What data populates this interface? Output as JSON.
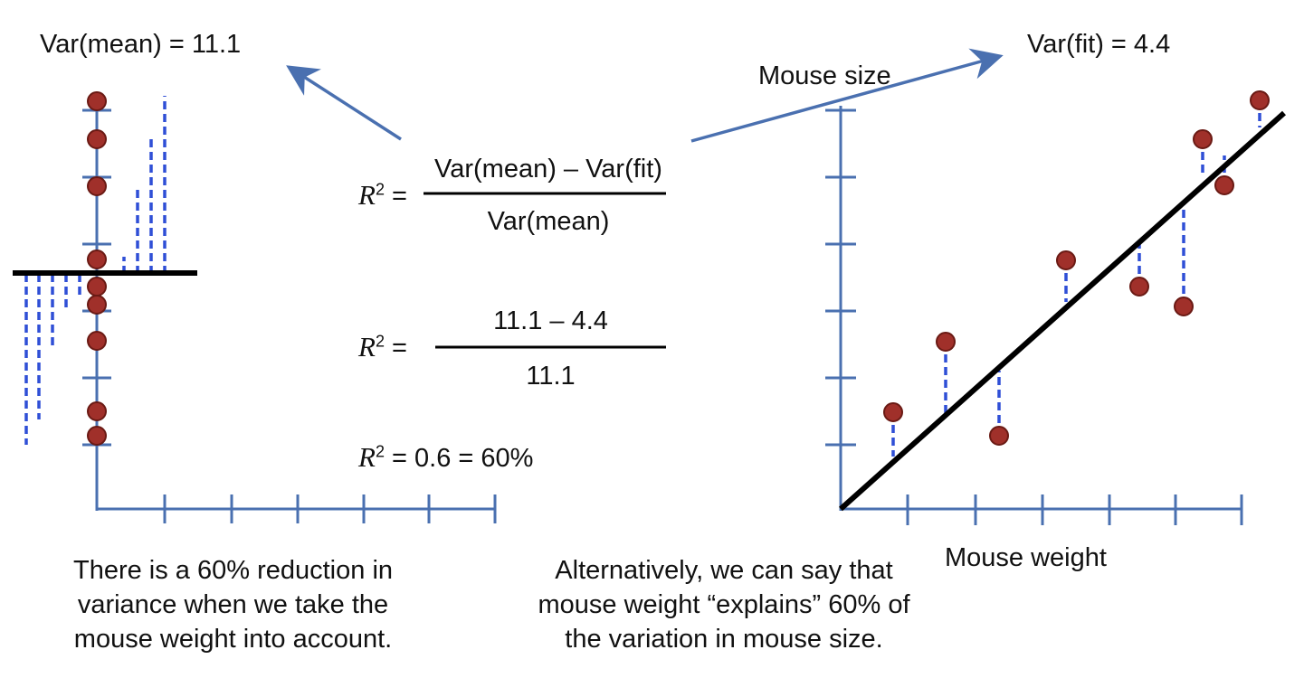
{
  "labels": {
    "var_mean": "Var(mean) = 11.1",
    "var_fit": "Var(fit) = 4.4",
    "mouse_size": "Mouse size",
    "mouse_weight": "Mouse weight"
  },
  "formula1": {
    "lhs_symbol": "R",
    "lhs_exp": "2",
    "lhs_eq": " =",
    "numerator": "Var(mean) – Var(fit)",
    "denominator": "Var(mean)"
  },
  "formula2": {
    "lhs_symbol": "R",
    "lhs_exp": "2",
    "lhs_eq": " =",
    "numerator": "11.1 – 4.4",
    "denominator": "11.1"
  },
  "formula3": {
    "lhs_symbol": "R",
    "lhs_exp": "2",
    "rhs": " = 0.6 = 60%"
  },
  "captions": {
    "left": [
      "There is a 60% reduction in",
      "variance when we take the",
      "mouse weight into account."
    ],
    "center": [
      "Alternatively, we can say that",
      "mouse weight “explains” 60% of",
      "the variation in mouse size."
    ]
  },
  "colors": {
    "axis": "#4a70b0",
    "point_fill": "#a0302a",
    "point_stroke": "#6a1a14",
    "residual": "#2f4fd6",
    "fit_line": "#000000",
    "arrow": "#4a70b0"
  }
}
